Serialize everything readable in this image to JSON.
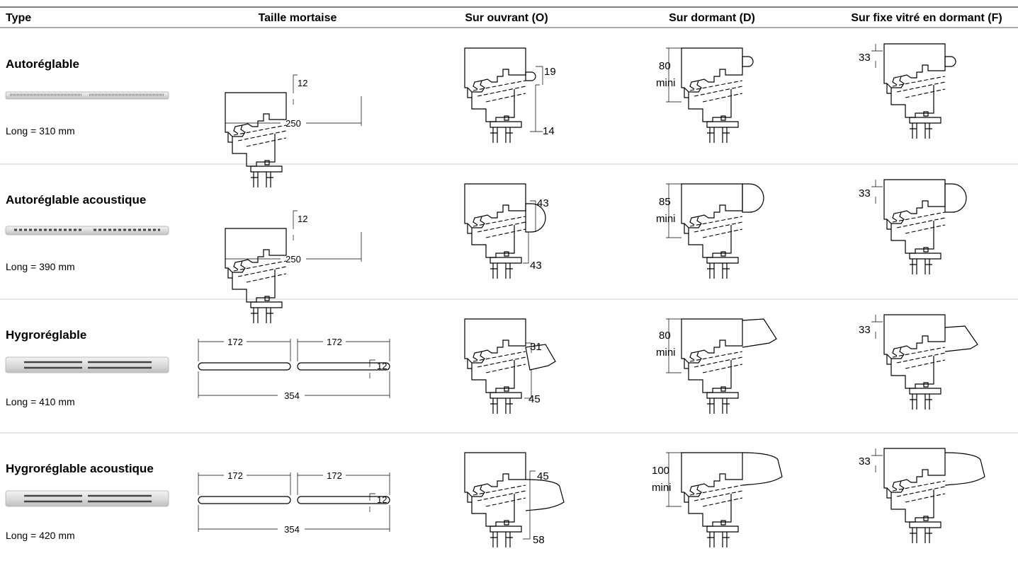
{
  "table": {
    "headers": [
      "Type",
      "Taille mortaise",
      "Sur ouvrant (O)",
      "Sur dormant (D)",
      "Sur fixe vitré en dormant (F)"
    ],
    "rows": [
      {
        "type": "Autoréglable",
        "length": "Long = 310 mm",
        "mortise": [
          "12",
          "250"
        ],
        "ouvrant": [
          "19",
          "14"
        ],
        "dormant": [
          "80",
          "mini"
        ],
        "fixe": [
          "33"
        ]
      },
      {
        "type": "Autoréglable acoustique",
        "length": "Long = 390 mm",
        "mortise": [
          "12",
          "250"
        ],
        "ouvrant": [
          "43",
          "43"
        ],
        "dormant": [
          "85",
          "mini"
        ],
        "fixe": [
          "33"
        ]
      },
      {
        "type": "Hygroréglable",
        "length": "Long = 410 mm",
        "mortise": [
          "172",
          "172",
          "12",
          "354"
        ],
        "ouvrant": [
          "31",
          "45"
        ],
        "dormant": [
          "80",
          "mini"
        ],
        "fixe": [
          "33"
        ]
      },
      {
        "type": "Hygroréglable acoustique",
        "length": "Long = 420 mm",
        "mortise": [
          "172",
          "172",
          "12",
          "354"
        ],
        "ouvrant": [
          "45",
          "58"
        ],
        "dormant": [
          "100",
          "mini"
        ],
        "fixe": [
          "33"
        ]
      }
    ]
  }
}
